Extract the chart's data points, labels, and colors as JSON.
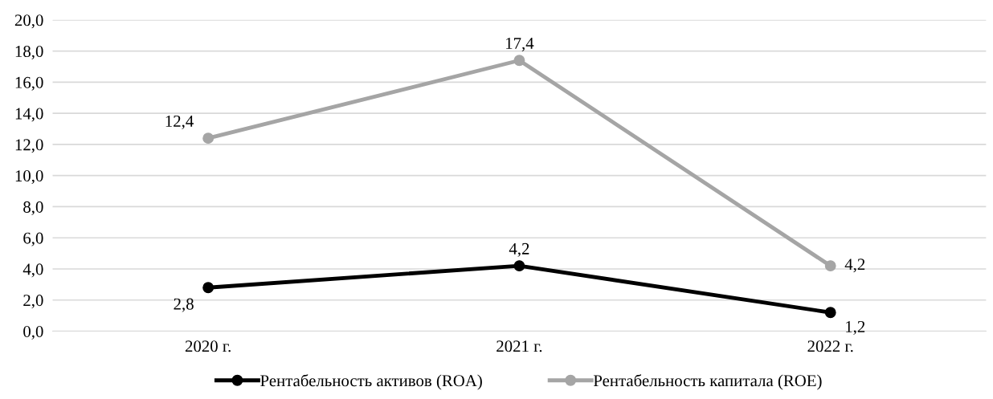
{
  "chart_data": {
    "type": "line",
    "categories": [
      "2020 г.",
      "2021 г.",
      "2022 г."
    ],
    "series": [
      {
        "name": "Рентабельность активов (ROA)",
        "color": "#000000",
        "values": [
          2.8,
          4.2,
          1.2
        ],
        "value_labels": [
          "2,8",
          "4,2",
          "1,2"
        ]
      },
      {
        "name": "Рентабельность капитала (ROE)",
        "color": "#a5a5a5",
        "values": [
          12.4,
          17.4,
          4.2
        ],
        "value_labels": [
          "12,4",
          "17,4",
          "4,2"
        ]
      }
    ],
    "ylim": [
      0,
      20
    ],
    "yticks": [
      {
        "value": 0,
        "label": "0,0"
      },
      {
        "value": 2,
        "label": "2,0"
      },
      {
        "value": 4,
        "label": "4,0"
      },
      {
        "value": 6,
        "label": "6,0"
      },
      {
        "value": 8,
        "label": "8,0"
      },
      {
        "value": 10,
        "label": "10,0"
      },
      {
        "value": 12,
        "label": "12,0"
      },
      {
        "value": 14,
        "label": "14,0"
      },
      {
        "value": 16,
        "label": "16,0"
      },
      {
        "value": 18,
        "label": "18,0"
      },
      {
        "value": 20,
        "label": "20,0"
      }
    ],
    "grid": "y",
    "legend": "bottom",
    "marker": "circle",
    "line_style": "solid"
  }
}
